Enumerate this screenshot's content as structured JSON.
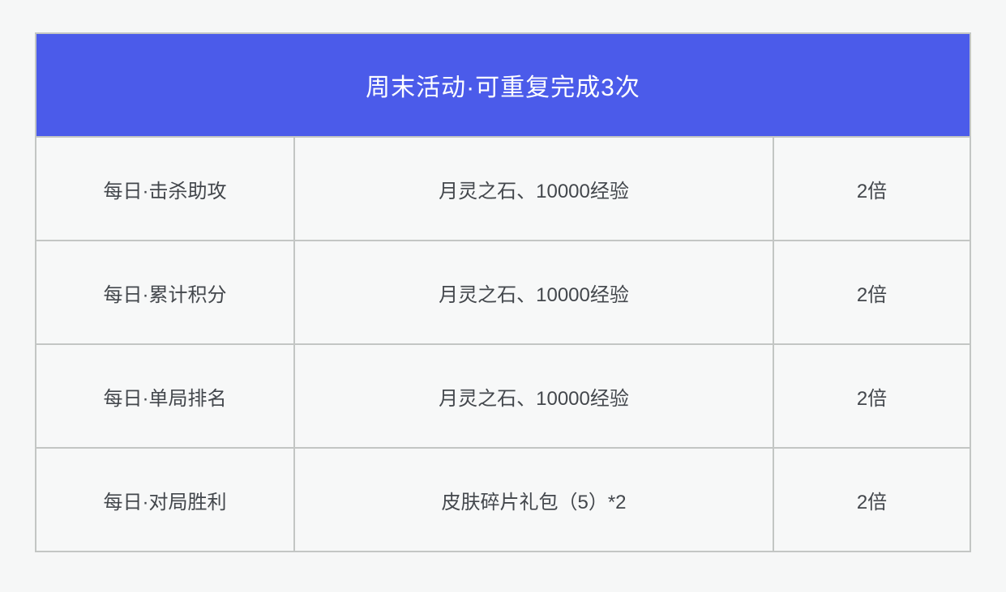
{
  "colors": {
    "page_bg": "#F6F7F7",
    "header_bg": "#4B5BEA",
    "header_text": "#FFFFFF",
    "cell_bg": "#F7F8F8",
    "border_color": "#C3C6C4",
    "text_color": "#43474C"
  },
  "table": {
    "header": {
      "title": "周末活动·可重复完成3次"
    },
    "rows": [
      {
        "task": "每日·击杀助攻",
        "reward": "月灵之石、10000经验",
        "multiplier": "2倍"
      },
      {
        "task": "每日·累计积分",
        "reward": "月灵之石、10000经验",
        "multiplier": "2倍"
      },
      {
        "task": "每日·单局排名",
        "reward": "月灵之石、10000经验",
        "multiplier": "2倍"
      },
      {
        "task": "每日·对局胜利",
        "reward": "皮肤碎片礼包（5）*2",
        "multiplier": "2倍"
      }
    ]
  }
}
